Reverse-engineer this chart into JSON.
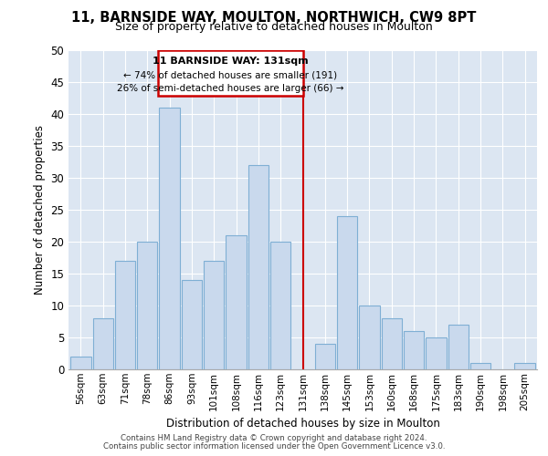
{
  "title": "11, BARNSIDE WAY, MOULTON, NORTHWICH, CW9 8PT",
  "subtitle": "Size of property relative to detached houses in Moulton",
  "xlabel": "Distribution of detached houses by size in Moulton",
  "ylabel": "Number of detached properties",
  "categories": [
    "56sqm",
    "63sqm",
    "71sqm",
    "78sqm",
    "86sqm",
    "93sqm",
    "101sqm",
    "108sqm",
    "116sqm",
    "123sqm",
    "131sqm",
    "138sqm",
    "145sqm",
    "153sqm",
    "160sqm",
    "168sqm",
    "175sqm",
    "183sqm",
    "190sqm",
    "198sqm",
    "205sqm"
  ],
  "values": [
    2,
    8,
    17,
    20,
    41,
    14,
    17,
    21,
    32,
    20,
    0,
    4,
    24,
    10,
    8,
    6,
    5,
    7,
    1,
    0,
    1
  ],
  "bar_color": "#c9d9ed",
  "bar_edge_color": "#7fafd4",
  "highlight_line_color": "#cc0000",
  "ann_line1": "11 BARNSIDE WAY: 131sqm",
  "ann_line2": "← 74% of detached houses are smaller (191)",
  "ann_line3": "26% of semi-detached houses are larger (66) →",
  "ylim": [
    0,
    50
  ],
  "yticks": [
    0,
    5,
    10,
    15,
    20,
    25,
    30,
    35,
    40,
    45,
    50
  ],
  "footer_line1": "Contains HM Land Registry data © Crown copyright and database right 2024.",
  "footer_line2": "Contains public sector information licensed under the Open Government Licence v3.0.",
  "plot_bg_color": "#dce6f2",
  "grid_color": "#ffffff"
}
